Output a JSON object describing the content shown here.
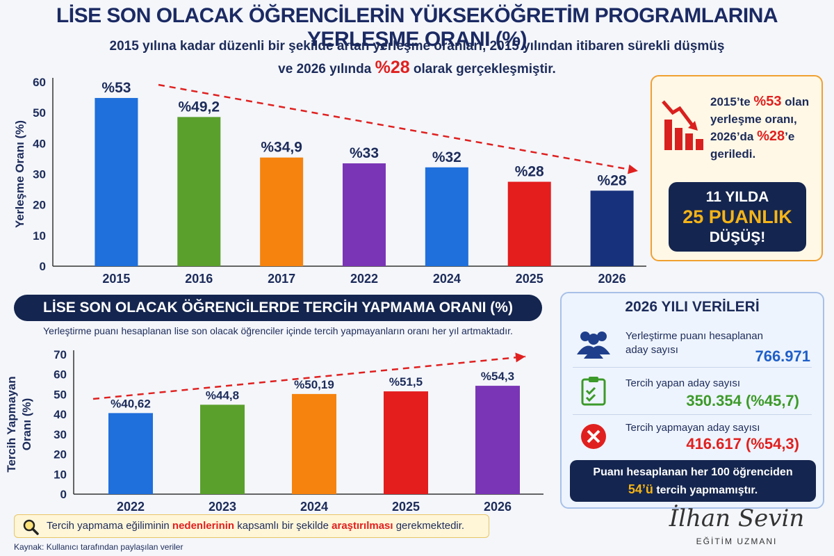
{
  "header": {
    "title": "LİSE SON OLACAK ÖĞRENCİLERİN YÜKSEKÖĞRETİM PROGRAMLARINA YERLEŞME ORANI (%)",
    "subtitle_line1": "2015 yılına kadar düzenli bir şekilde artan yerleşme oranları, 2015 yılından itibaren sürekli düşmüş",
    "subtitle_line2_pre": "ve 2026 yılında",
    "subtitle_line2_hl": "%28",
    "subtitle_line2_post": "olarak gerçekleşmiştir."
  },
  "chart_data": [
    {
      "type": "bar",
      "categories": [
        "2015",
        "2016",
        "2017",
        "2022",
        "2024",
        "2025",
        "2026"
      ],
      "values": [
        53,
        49.2,
        34.9,
        33,
        32,
        28,
        28
      ],
      "drawn_values": [
        54.8,
        48.6,
        35.4,
        33.5,
        32.2,
        27.5,
        24.6
      ],
      "data_labels": [
        "%53",
        "%49,2",
        "%34,9",
        "%33",
        "%32",
        "%28",
        "%28"
      ],
      "colors": [
        "#1f6fdc",
        "#5aa02c",
        "#f6830e",
        "#7a35b6",
        "#1f6fdc",
        "#e41d1d",
        "#17317c"
      ],
      "ylabel": "Yerleşme Oranı (%)",
      "ylim": [
        0,
        60
      ],
      "yticks": [
        "0",
        "10",
        "20",
        "30",
        "40",
        "50",
        "60"
      ],
      "trend_arrow": "down",
      "grid": false
    },
    {
      "type": "bar",
      "categories": [
        "2022",
        "2023",
        "2024",
        "2025",
        "2026"
      ],
      "values": [
        40.62,
        44.8,
        50.19,
        51.5,
        54.3
      ],
      "data_labels": [
        "%40,62",
        "%44,8",
        "%50,19",
        "%51,5",
        "%54,3"
      ],
      "colors": [
        "#1f6fdc",
        "#5aa02c",
        "#f6830e",
        "#e41d1d",
        "#7a35b6"
      ],
      "ylabel_line1": "Tercih Yapmayan",
      "ylabel_line2": "Oranı (%)",
      "ylim": [
        0,
        70
      ],
      "yticks": [
        "0",
        "10",
        "20",
        "30",
        "40",
        "50",
        "60",
        "70"
      ],
      "trend_arrow": "up",
      "grid": false
    }
  ],
  "summary": {
    "line1_pre": "2015’te",
    "line1_hl": "%53",
    "line1_post": "olan",
    "line2": "yerleşme oranı,",
    "line3_pre": "2026’da",
    "line3_hl": "%28",
    "line3_post": "’e",
    "line4": "geriledi.",
    "icon": "declining-bar-chart-icon"
  },
  "drop_box": {
    "line1": "11 YILDA",
    "line2": "25 PUANLIK",
    "line3": "DÜŞÜŞ!"
  },
  "section2": {
    "banner": "LİSE SON OLACAK ÖĞRENCİLERDE TERCİH YAPMAMA ORANI (%)",
    "desc": "Yerleştirme puanı hesaplanan lise son olacak öğrenciler içinde tercih yapmayanların oranı her yıl artmaktadır."
  },
  "panel_2026": {
    "title": "2026 YILI VERİLERİ",
    "rows": [
      {
        "label_line1": "Yerleştirme puanı hesaplanan",
        "label_line2": "aday sayısı",
        "value": "766.971",
        "color": "#1f5fc8",
        "icon": "users-icon"
      },
      {
        "label_line1": "Tercih yapan aday sayısı",
        "label_line2": "",
        "value": "350.354 (%45,7)",
        "color": "#3c9a2a",
        "icon": "clipboard-check-icon"
      },
      {
        "label_line1": "Tercih yapmayan aday sayısı",
        "label_line2": "",
        "value": "416.617 (%54,3)",
        "color": "#e0201f",
        "icon": "x-circle-icon"
      }
    ],
    "final_line1": "Puanı hesaplanan her 100 öğrenciden",
    "final_hl": "54’ü",
    "final_post": "tercih yapmamıştır."
  },
  "note": {
    "pre": "Tercih yapmama eğiliminin",
    "hl1": "nedenlerinin",
    "mid": "kapsamlı bir şekilde",
    "hl2": "araştırılması",
    "post": "gerekmektedir.",
    "icon": "magnifier-icon"
  },
  "source": "Kaynak: Kullanıcı tarafından paylaşılan veriler",
  "signature": {
    "name": "İlhan Sevin",
    "role": "EĞİTİM UZMANI"
  },
  "colors": {
    "navy": "#14254f",
    "red": "#e0201f",
    "gold": "#f5b417"
  }
}
